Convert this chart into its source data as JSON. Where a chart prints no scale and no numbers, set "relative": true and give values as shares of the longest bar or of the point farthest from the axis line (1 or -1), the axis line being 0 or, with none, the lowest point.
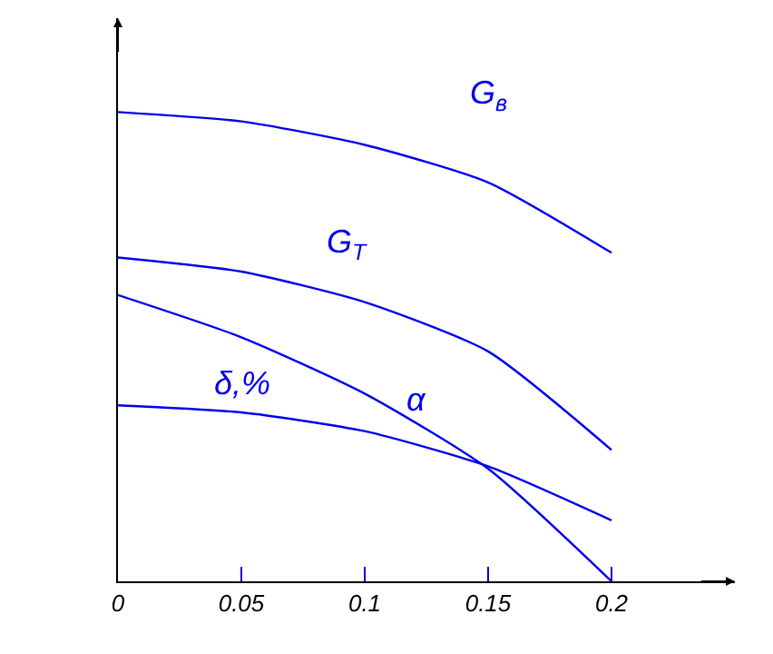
{
  "chart_data": {
    "type": "line",
    "relative": true,
    "x": [
      0,
      0.05,
      0.1,
      0.15,
      0.2
    ],
    "xlim": [
      0,
      0.25
    ],
    "xticks": [
      0,
      0.05,
      0.1,
      0.15,
      0.2
    ],
    "tick_labels": "x",
    "legend": false,
    "marker": "none",
    "line_style": "solid",
    "series": [
      {
        "name": "G$_{в}$",
        "color": "#0000ee",
        "values": [
          1,
          0.98,
          0.93,
          0.85,
          0.7
        ]
      },
      {
        "name": "G$_{T}$",
        "color": "#0000ee",
        "values": [
          0.69,
          0.66,
          0.595,
          0.49,
          0.28
        ]
      },
      {
        "name": "α",
        "color": "#0000ee",
        "values": [
          0.61,
          0.52,
          0.4,
          0.24,
          0
        ]
      },
      {
        "name": "δ,%",
        "color": "#0000ee",
        "values": [
          0.375,
          0.36,
          0.32,
          0.245,
          0.13
        ]
      }
    ]
  }
}
